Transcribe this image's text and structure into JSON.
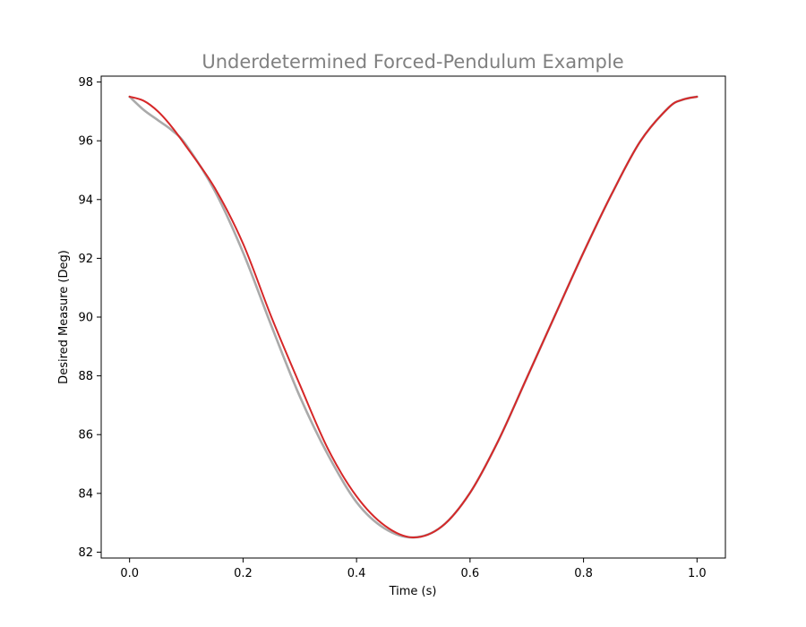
{
  "chart_data": {
    "type": "line",
    "title": "Underdetermined Forced-Pendulum Example",
    "xlabel": "Time (s)",
    "ylabel": "Desired Measure (Deg)",
    "xlim": [
      -0.05,
      1.05
    ],
    "ylim": [
      81.8,
      98.2
    ],
    "xticks": [
      0.0,
      0.2,
      0.4,
      0.6,
      0.8,
      1.0
    ],
    "xtick_labels": [
      "0.0",
      "0.2",
      "0.4",
      "0.6",
      "0.8",
      "1.0"
    ],
    "yticks": [
      82,
      84,
      86,
      88,
      90,
      92,
      94,
      96,
      98
    ],
    "ytick_labels": [
      "82",
      "84",
      "86",
      "88",
      "90",
      "92",
      "94",
      "96",
      "98"
    ],
    "grid": false,
    "legend": "none",
    "series": [
      {
        "color": "#aaaaaa",
        "x": [
          0.0,
          0.025,
          0.05,
          0.075,
          0.1,
          0.15,
          0.2,
          0.25,
          0.3,
          0.35,
          0.4,
          0.45,
          0.5,
          0.55,
          0.6,
          0.65,
          0.7,
          0.75,
          0.8,
          0.85,
          0.9,
          0.95,
          0.975,
          1.0
        ],
        "y": [
          97.5,
          97.05,
          96.7,
          96.35,
          95.85,
          94.3,
          92.2,
          89.7,
          87.3,
          85.3,
          83.7,
          82.8,
          82.5,
          82.87,
          84.02,
          85.8,
          87.93,
          90.07,
          92.2,
          94.2,
          95.98,
          97.13,
          97.4,
          97.5
        ]
      },
      {
        "color": "#d62728",
        "x": [
          0.0,
          0.025,
          0.05,
          0.075,
          0.1,
          0.15,
          0.2,
          0.25,
          0.3,
          0.35,
          0.4,
          0.45,
          0.5,
          0.55,
          0.6,
          0.65,
          0.7,
          0.75,
          0.8,
          0.85,
          0.9,
          0.95,
          0.975,
          1.0
        ],
        "y": [
          97.5,
          97.36,
          97.0,
          96.46,
          95.8,
          94.4,
          92.5,
          90.0,
          87.7,
          85.5,
          83.9,
          82.9,
          82.5,
          82.87,
          84.02,
          85.8,
          87.93,
          90.07,
          92.2,
          94.2,
          95.98,
          97.13,
          97.4,
          97.5
        ]
      }
    ]
  },
  "colors": {
    "background": "#ffffff",
    "axes": "#000000",
    "title": "#808080"
  }
}
